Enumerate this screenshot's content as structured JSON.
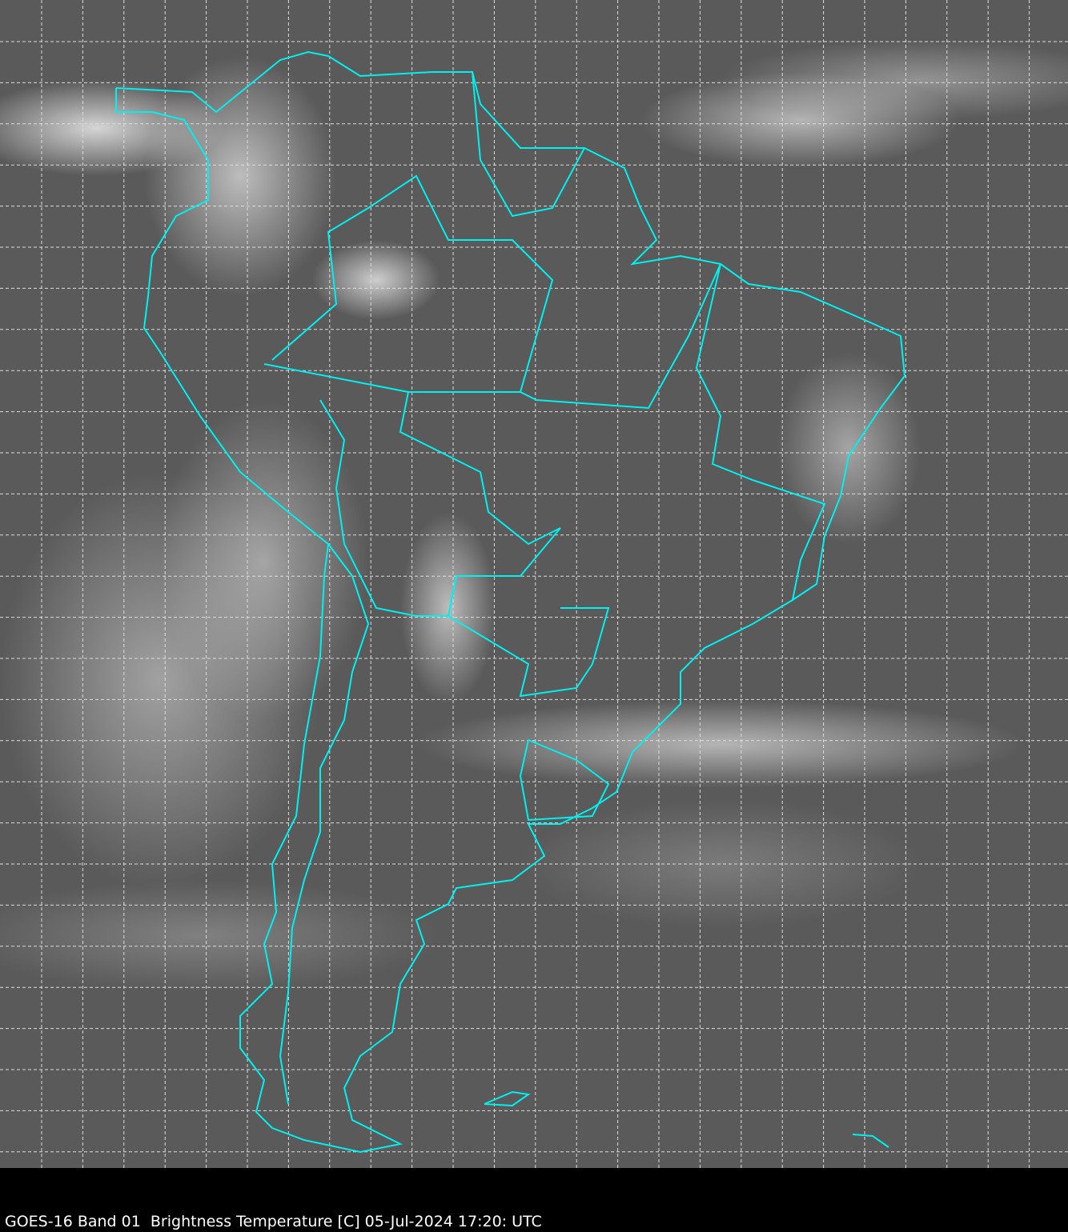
{
  "caption": "GOES-16 Band 01  Brightness Temperature [C] 05-Jul-2024 17:20: UTC",
  "colors": {
    "border": "#00f0f0",
    "grid": "#dcdcdc",
    "background": "#000000"
  },
  "map": {
    "region": "South America",
    "layers": [
      "satellite-imagery",
      "country-borders",
      "lat-lon-grid"
    ]
  }
}
